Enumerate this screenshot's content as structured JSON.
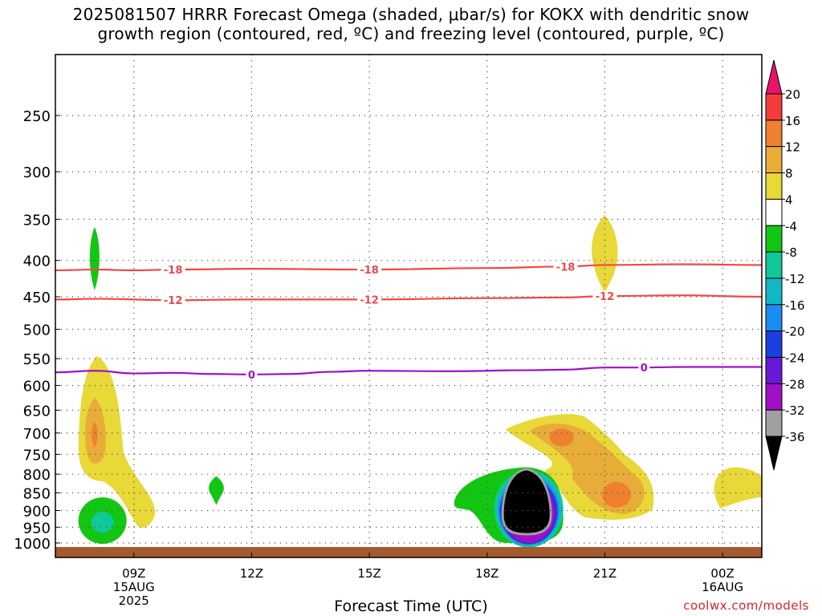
{
  "title": {
    "line1": "2025081507 HRRR Forecast Omega (shaded, μbar/s) for KOKX with dendritic snow",
    "line2": "growth region (contoured, red, ºC) and freezing level (contoured, purple, ºC)"
  },
  "xlabel": "Forecast Time (UTC)",
  "credit": "coolwx.com/models",
  "chart_data": {
    "type": "heatmap",
    "x_axis": {
      "range_hours": [
        7,
        25
      ],
      "ticks": [
        {
          "hour": 9,
          "label": "09Z",
          "sub1": "15AUG",
          "sub2": "2025"
        },
        {
          "hour": 12,
          "label": "12Z"
        },
        {
          "hour": 15,
          "label": "15Z"
        },
        {
          "hour": 18,
          "label": "18Z"
        },
        {
          "hour": 21,
          "label": "21Z"
        },
        {
          "hour": 24,
          "label": "00Z",
          "sub1": "16AUG"
        }
      ]
    },
    "y_axis": {
      "scale": "log-pressure",
      "range_hPa": [
        200,
        1025
      ],
      "ticks": [
        250,
        300,
        350,
        400,
        450,
        500,
        550,
        600,
        650,
        700,
        750,
        800,
        850,
        900,
        950,
        1000
      ]
    },
    "grid": true,
    "colorbar": {
      "labels": [
        20,
        16,
        12,
        8,
        4,
        -4,
        -8,
        -12,
        -16,
        -20,
        -24,
        -28,
        -32,
        -36
      ],
      "colors": [
        "#e8136b",
        "#f43c3c",
        "#ef8030",
        "#e8ac38",
        "#e8d838",
        "#ffffff",
        "#13c613",
        "#10c89a",
        "#10b8c8",
        "#1a8ef0",
        "#1a40e0",
        "#6a18d8",
        "#a010c8",
        "#a0a0a0",
        "#000000"
      ]
    },
    "contours": [
      {
        "label": "-18",
        "color": "#f04848",
        "points": [
          [
            7,
            413
          ],
          [
            8,
            412
          ],
          [
            9,
            413
          ],
          [
            10,
            412
          ],
          [
            12,
            411
          ],
          [
            15,
            412
          ],
          [
            18,
            410
          ],
          [
            20,
            408
          ],
          [
            21,
            406
          ],
          [
            23,
            405
          ],
          [
            25,
            406
          ]
        ],
        "label_hours": [
          10,
          15,
          20
        ]
      },
      {
        "label": "-12",
        "color": "#f04848",
        "points": [
          [
            7,
            454
          ],
          [
            8,
            453
          ],
          [
            10,
            455
          ],
          [
            12,
            454
          ],
          [
            15,
            454
          ],
          [
            18,
            452
          ],
          [
            20,
            451
          ],
          [
            21,
            449
          ],
          [
            23,
            448
          ],
          [
            25,
            450
          ]
        ],
        "label_hours": [
          10,
          15,
          21
        ]
      },
      {
        "label": "0",
        "color": "#a010c8",
        "points": [
          [
            7,
            575
          ],
          [
            8,
            572
          ],
          [
            9,
            577
          ],
          [
            10,
            576
          ],
          [
            11,
            578
          ],
          [
            12,
            579
          ],
          [
            13,
            578
          ],
          [
            14,
            574
          ],
          [
            15,
            572
          ],
          [
            17,
            573
          ],
          [
            19,
            571
          ],
          [
            20,
            570
          ],
          [
            21,
            566
          ],
          [
            22,
            566
          ],
          [
            23,
            565
          ],
          [
            25,
            565
          ]
        ],
        "label_hours": [
          12,
          22
        ]
      }
    ],
    "omega_features": [
      {
        "center": [
          8.0,
          395
        ],
        "value": -6
      },
      {
        "center": [
          8.0,
          700
        ],
        "value": 10
      },
      {
        "center": [
          8.2,
          930
        ],
        "value": -9
      },
      {
        "center": [
          11.1,
          835
        ],
        "value": -5
      },
      {
        "center": [
          19.0,
          900
        ],
        "value": -36
      },
      {
        "center": [
          19.9,
          710
        ],
        "value": 12
      },
      {
        "center": [
          20.3,
          800
        ],
        "value": 10
      },
      {
        "center": [
          21.3,
          855
        ],
        "value": 12
      },
      {
        "center": [
          21.0,
          390
        ],
        "value": 5
      },
      {
        "center": [
          24.8,
          835
        ],
        "value": 5
      }
    ],
    "ground_color": "#a5592e"
  }
}
